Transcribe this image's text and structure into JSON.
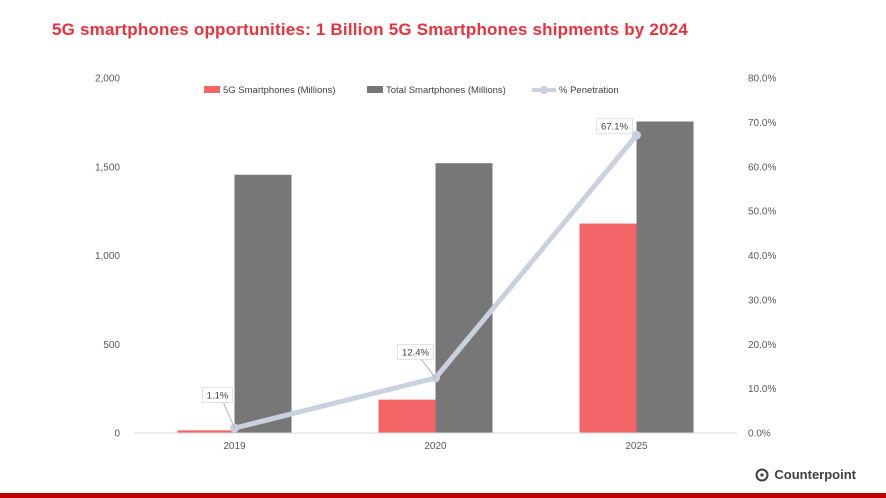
{
  "title": "5G smartphones opportunities: 1 Billion 5G Smartphones shipments by 2024",
  "brand": {
    "name": "Counterpoint",
    "icon": "counterpoint-logo-icon"
  },
  "colors": {
    "title": "#e8323c",
    "bar_5g": "#f26466",
    "bar_total": "#777777",
    "line_penetration": "#c9d0de",
    "bottom_bar": "#c00000"
  },
  "chart_data": {
    "type": "bar",
    "categories": [
      "2019",
      "2020",
      "2025"
    ],
    "series": [
      {
        "name": "5G Smartphones (Millions)",
        "type": "bar",
        "axis": "left",
        "values": [
          15,
          188,
          1180
        ]
      },
      {
        "name": "Total Smartphones (Millions)",
        "type": "bar",
        "axis": "left",
        "values": [
          1455,
          1520,
          1755
        ]
      },
      {
        "name": "% Penetration",
        "type": "line",
        "axis": "right",
        "values": [
          1.1,
          12.4,
          67.1
        ],
        "labels": [
          "1.1%",
          "12.4%",
          "67.1%"
        ]
      }
    ],
    "y_left": {
      "ticks": [
        "0",
        "500",
        "1,000",
        "1,500",
        "2,000"
      ],
      "lim": [
        0,
        2000
      ]
    },
    "y_right": {
      "ticks": [
        "0.0%",
        "10.0%",
        "20.0%",
        "30.0%",
        "40.0%",
        "50.0%",
        "60.0%",
        "70.0%",
        "80.0%"
      ],
      "lim": [
        0,
        80
      ]
    },
    "legend_position": "top",
    "grid": false
  }
}
